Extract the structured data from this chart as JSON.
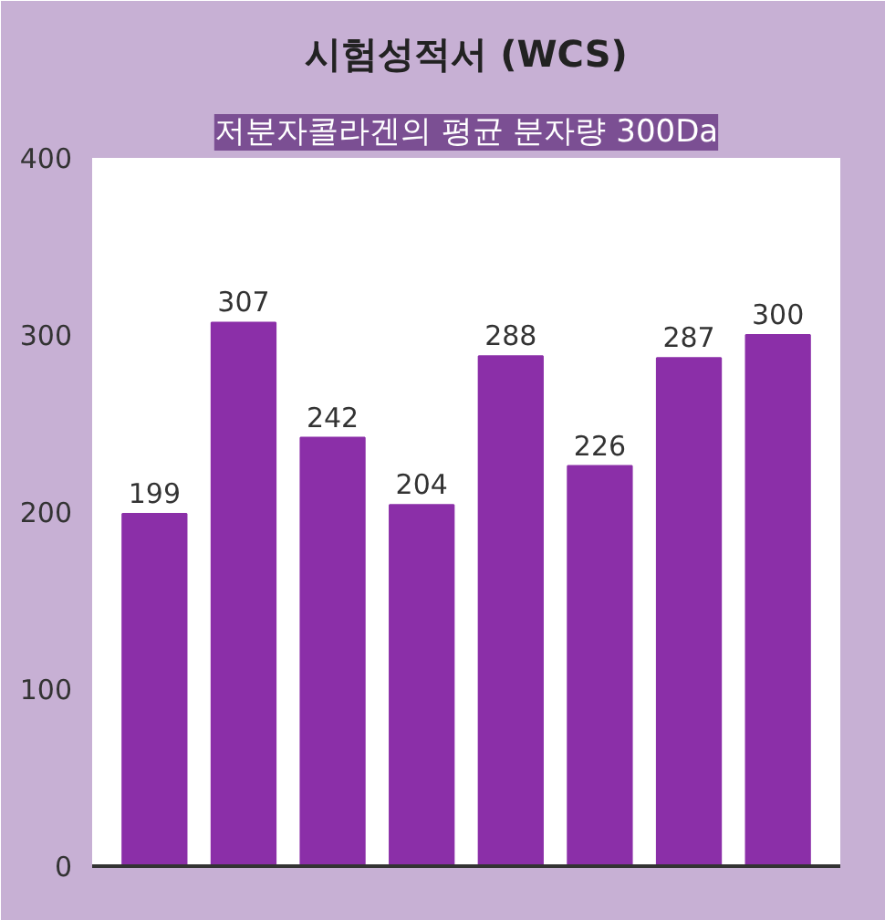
{
  "chart_data": {
    "type": "bar",
    "title": "시험성적서 (WCS)",
    "subtitle": "저분자콜라겐의 평균 분자량 300Da",
    "categories": [
      null,
      null,
      null,
      null,
      null,
      null,
      null,
      null
    ],
    "values": [
      199,
      307,
      242,
      204,
      288,
      226,
      287,
      300
    ],
    "data_labels": true,
    "color": "#8b2fa8",
    "ylim": [
      0,
      400
    ],
    "yticks": [
      0,
      100,
      200,
      300,
      400
    ],
    "grid": false
  }
}
